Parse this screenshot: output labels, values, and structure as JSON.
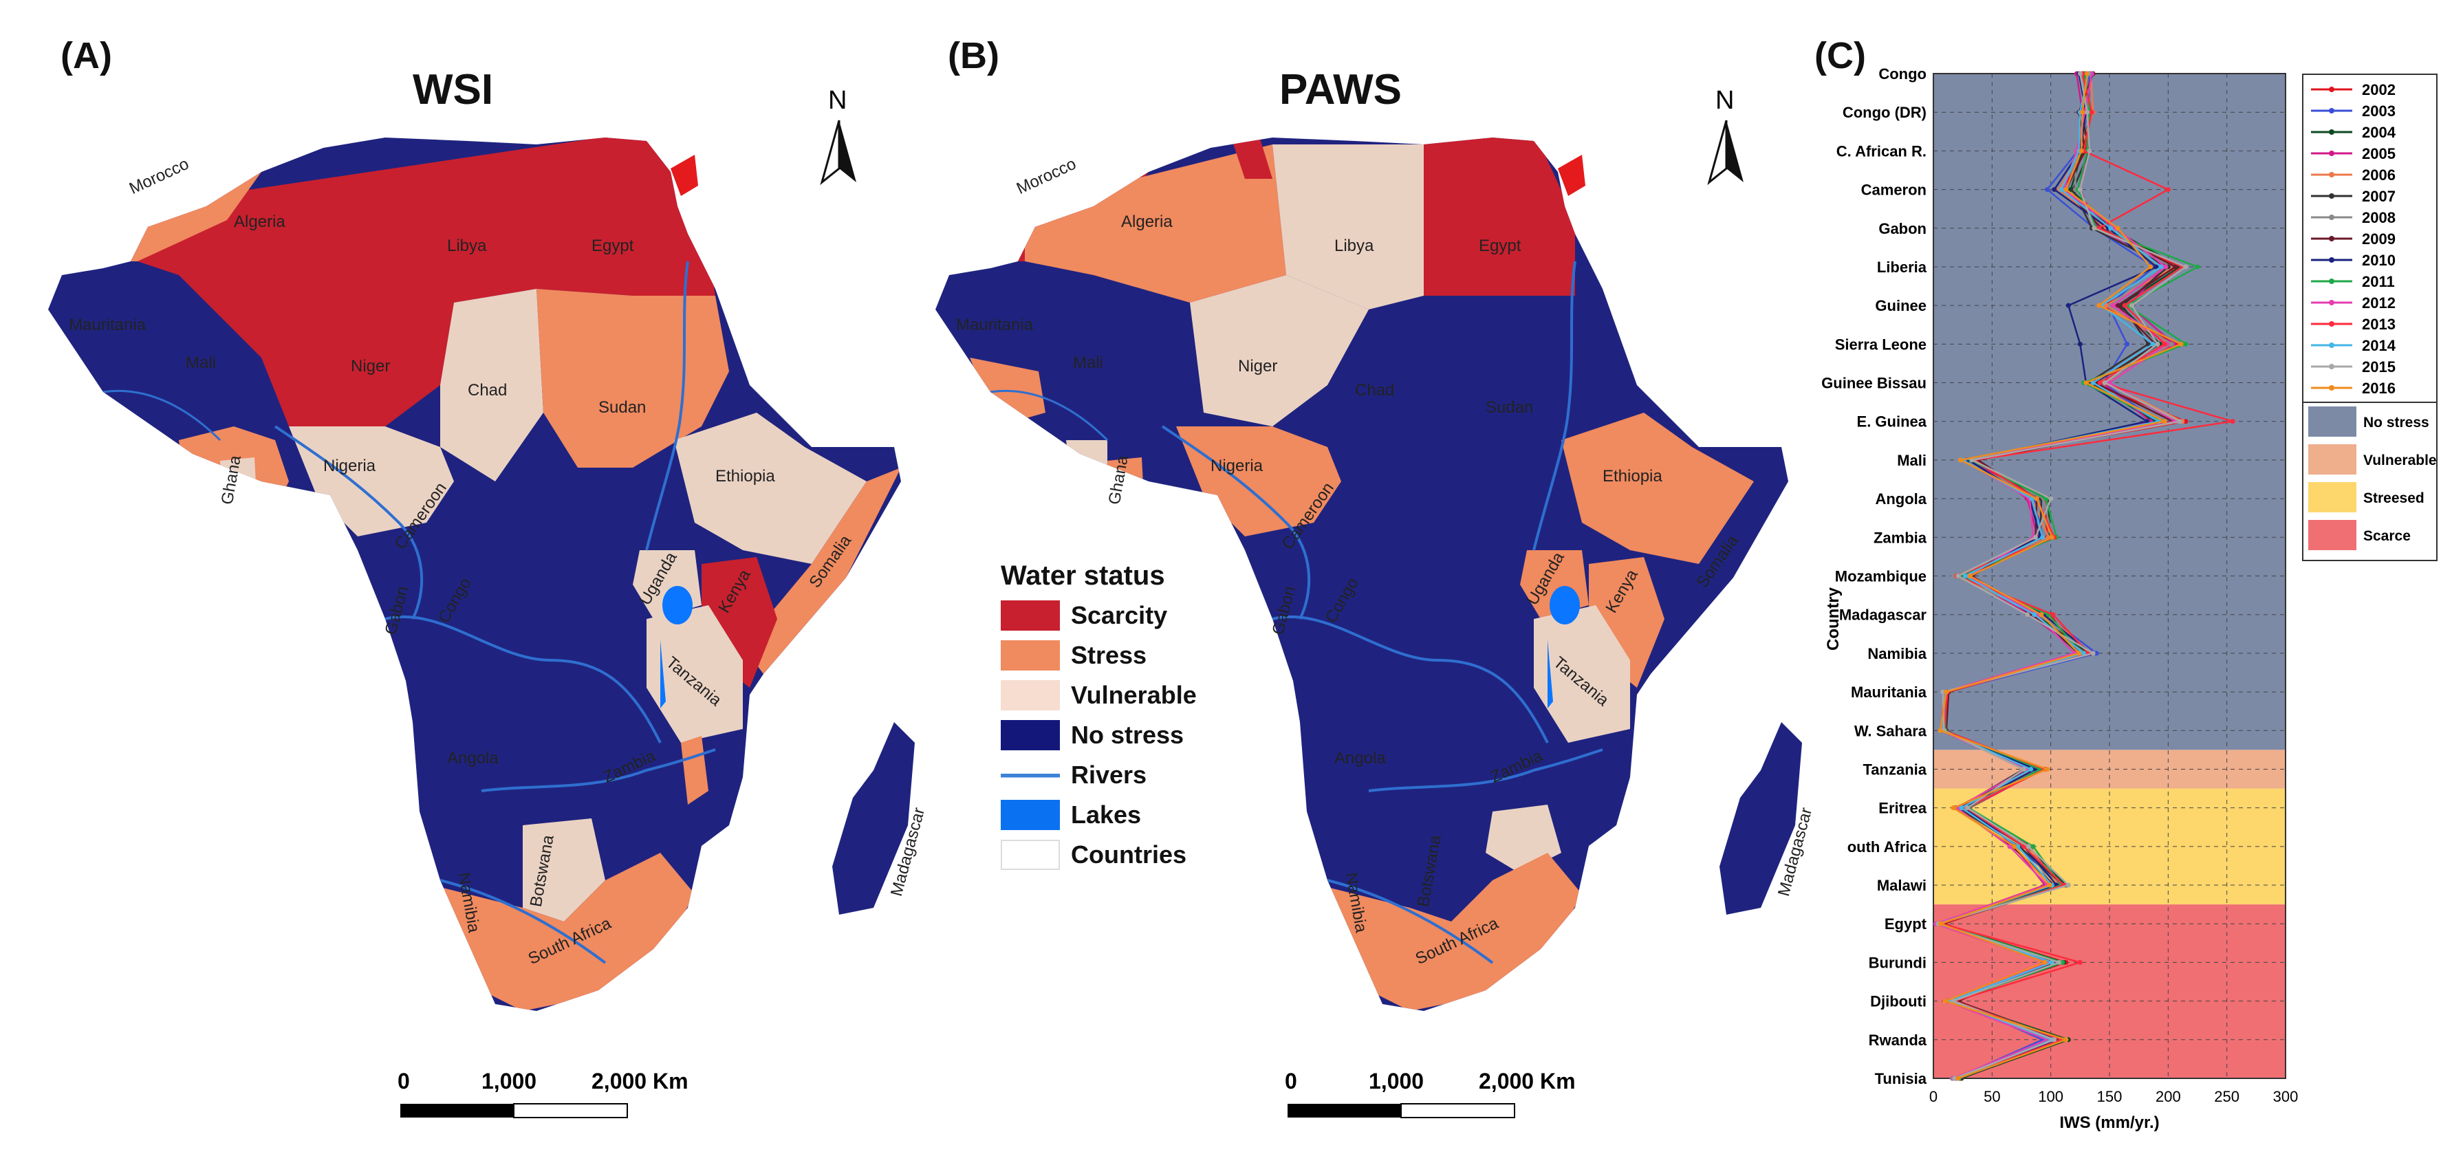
{
  "panels": {
    "a": {
      "letter": "(A)",
      "title": "WSI"
    },
    "b": {
      "letter": "(B)",
      "title": "PAWS"
    },
    "c": {
      "letter": "(C)"
    }
  },
  "north_label": "N",
  "scale": {
    "zero": "0",
    "mid": "1,000",
    "end": "2,000 Km"
  },
  "map_a_labels": {
    "morocco": "Morocco",
    "algeria": "Algeria",
    "libya": "Libya",
    "egypt": "Egypt",
    "mauritania": "Mauritania",
    "mali": "Mali",
    "niger": "Niger",
    "chad": "Chad",
    "sudan": "Sudan",
    "nigeria": "Nigeria",
    "ghana": "Ghana",
    "cameroon": "Cameroon",
    "ethiopia": "Ethiopia",
    "somalia": "Somalia",
    "gabon": "Gabon",
    "congo": "Congo",
    "uganda": "Uganda",
    "kenya": "Kenya",
    "tanzania": "Tanzania",
    "angola": "Angola",
    "zambia": "Zambia",
    "namibia": "Namibia",
    "botswana": "Botswana",
    "south_africa": "South Africa",
    "madagascar": "Madagascar"
  },
  "map_b_labels": {
    "morocco": "Morocco",
    "algeria": "Algeria",
    "libya": "Libya",
    "egypt": "Egypt",
    "mauritania": "Mauritania",
    "mali": "Mali",
    "niger": "Niger",
    "chad": "Chad",
    "sudan": "Sudan",
    "nigeria": "Nigeria",
    "ghana": "Ghana",
    "cameroon": "Cameroon",
    "ethiopia": "Ethiopia",
    "somalia": "Somalia",
    "gabon": "Gabon",
    "congo": "Congo",
    "uganda": "Uganda",
    "kenya": "Kenya",
    "tanzania": "Tanzania",
    "angola": "Angola",
    "zambia": "Zambia",
    "namibia": "Namibia",
    "botswana": "Botswana",
    "south_africa": "South Africa",
    "madagascar": "Madagascar"
  },
  "status_colors": {
    "scarcity": "#c8202f",
    "stress": "#f08a5f",
    "vulnerable": "#ead2c3",
    "no_stress": "#1f237f",
    "rivers": "#2f6fd0",
    "lakes": "#0b76ff"
  },
  "water_legend": {
    "title": "Water status",
    "items": [
      {
        "label": "Scarcity",
        "color": "#c8202f"
      },
      {
        "label": "Stress",
        "color": "#f08a5f"
      },
      {
        "label": "Vulnerable",
        "color": "#f6ddd0"
      },
      {
        "label": "No stress",
        "color": "#14177a"
      },
      {
        "label": "Rivers",
        "color": "#3b82d8"
      },
      {
        "label": "Lakes",
        "color": "#0a72f0"
      },
      {
        "label": "Countries",
        "color": "#ffffff"
      }
    ]
  },
  "chart_data": {
    "type": "line",
    "orientation": "horizontal",
    "xlabel": "IWS (mm/yr.)",
    "ylabel": "Country",
    "xlim": [
      0,
      300
    ],
    "xticks": [
      0,
      50,
      100,
      150,
      200,
      250,
      300
    ],
    "grid": true,
    "countries": [
      "Congo",
      "Congo (DR)",
      "C. African R.",
      "Cameron",
      "Gabon",
      "Liberia",
      "Guinee",
      "Sierra Leone",
      "Guinee Bissau",
      "E. Guinea",
      "Mali",
      "Angola",
      "Zambia",
      "Mozambique",
      "Madagascar",
      "Namibia",
      "Mauritania",
      "W. Sahara",
      "Tanzania",
      "Eritrea",
      "outh Africa",
      "Malawi",
      "Egypt",
      "Burundi",
      "Djibouti",
      "Rwanda",
      "Tunisia"
    ],
    "bands": [
      {
        "label": "No stress",
        "color": "#7c8aa6",
        "from": "Congo",
        "to": "W. Sahara"
      },
      {
        "label": "Vulnerable",
        "color": "#efae8c",
        "from": "Tanzania",
        "to": "Tanzania"
      },
      {
        "label": "Streesed",
        "color": "#fdd66c",
        "from": "Eritrea",
        "to": "Malawi"
      },
      {
        "label": "Scarce",
        "color": "#ef6f73",
        "from": "Egypt",
        "to": "Tunisia"
      }
    ],
    "mean_profile": [
      130,
      130,
      127,
      115,
      145,
      200,
      155,
      195,
      140,
      200,
      30,
      90,
      95,
      25,
      90,
      130,
      10,
      8,
      85,
      25,
      75,
      105,
      5,
      105,
      15,
      105,
      20
    ],
    "series": [
      {
        "name": "2002",
        "color": "#e0141e",
        "offsets": [
          0,
          -2,
          3,
          -5,
          4,
          8,
          -10,
          12,
          -6,
          15,
          -2,
          5,
          2,
          -4,
          10,
          -8,
          2,
          1,
          6,
          -3,
          8,
          -6,
          1,
          8,
          -2,
          -6,
          1
        ]
      },
      {
        "name": "2003",
        "color": "#3a4fd8",
        "offsets": [
          3,
          2,
          -4,
          -18,
          -8,
          -12,
          -6,
          -30,
          5,
          -10,
          -3,
          -4,
          -2,
          2,
          5,
          9,
          1,
          2,
          -5,
          2,
          -4,
          4,
          0,
          -10,
          3,
          -12,
          -1
        ]
      },
      {
        "name": "2004",
        "color": "#0d4a22",
        "offsets": [
          -2,
          4,
          0,
          2,
          6,
          10,
          4,
          -2,
          -4,
          -12,
          2,
          8,
          4,
          6,
          -3,
          2,
          0,
          -1,
          -4,
          4,
          5,
          8,
          2,
          6,
          1,
          10,
          3
        ]
      },
      {
        "name": "2005",
        "color": "#d11a8a",
        "offsets": [
          -8,
          -3,
          5,
          10,
          -5,
          -4,
          12,
          10,
          4,
          -15,
          4,
          -10,
          -6,
          -2,
          -8,
          -4,
          3,
          2,
          8,
          6,
          -6,
          -10,
          -2,
          -4,
          4,
          2,
          -2
        ]
      },
      {
        "name": "2006",
        "color": "#f0784c",
        "offsets": [
          4,
          6,
          -2,
          -8,
          2,
          5,
          -8,
          6,
          8,
          12,
          -4,
          -6,
          3,
          -6,
          6,
          5,
          -1,
          0,
          2,
          -2,
          6,
          2,
          0,
          3,
          -1,
          -2,
          0
        ]
      },
      {
        "name": "2007",
        "color": "#333333",
        "offsets": [
          2,
          -4,
          6,
          4,
          -10,
          0,
          6,
          -12,
          -8,
          -6,
          6,
          2,
          -4,
          4,
          -4,
          -6,
          2,
          1,
          -8,
          -4,
          -2,
          6,
          3,
          -6,
          5,
          6,
          4
        ]
      },
      {
        "name": "2008",
        "color": "#8a8a8a",
        "offsets": [
          -4,
          2,
          -6,
          6,
          8,
          -8,
          -4,
          8,
          6,
          8,
          -6,
          4,
          6,
          -8,
          2,
          6,
          -2,
          -2,
          4,
          2,
          4,
          -4,
          -1,
          4,
          -3,
          4,
          -4
        ]
      },
      {
        "name": "2009",
        "color": "#6b1a2a",
        "offsets": [
          6,
          -6,
          2,
          -2,
          -2,
          6,
          2,
          -6,
          -2,
          4,
          8,
          -2,
          -8,
          8,
          -6,
          -2,
          3,
          3,
          -2,
          -6,
          -8,
          -2,
          4,
          -2,
          6,
          -4,
          2
        ]
      },
      {
        "name": "2010",
        "color": "#1a237e",
        "offsets": [
          -6,
          0,
          -2,
          -12,
          4,
          -10,
          -40,
          -70,
          -10,
          -18,
          0,
          -8,
          -4,
          0,
          4,
          4,
          0,
          0,
          2,
          0,
          2,
          0,
          0,
          2,
          0,
          0,
          0
        ]
      },
      {
        "name": "2011",
        "color": "#1fa84a",
        "offsets": [
          -1,
          3,
          4,
          8,
          -6,
          25,
          10,
          20,
          -12,
          -5,
          2,
          6,
          10,
          -3,
          8,
          -4,
          1,
          2,
          6,
          5,
          10,
          4,
          1,
          5,
          2,
          6,
          2
        ]
      },
      {
        "name": "2012",
        "color": "#e63fb0",
        "offsets": [
          5,
          -1,
          -5,
          -4,
          10,
          -2,
          -2,
          4,
          10,
          6,
          -5,
          -8,
          -10,
          5,
          -2,
          -10,
          -1,
          -1,
          -6,
          -5,
          -10,
          -8,
          -3,
          -8,
          -4,
          -8,
          -3
        ]
      },
      {
        "name": "2013",
        "color": "#ff2a3d",
        "offsets": [
          -3,
          5,
          1,
          85,
          -4,
          12,
          8,
          2,
          2,
          55,
          5,
          -2,
          8,
          -5,
          12,
          2,
          2,
          1,
          10,
          3,
          2,
          6,
          2,
          20,
          3,
          4,
          1
        ]
      },
      {
        "name": "2014",
        "color": "#45b6e6",
        "offsets": [
          2,
          -5,
          -3,
          -6,
          6,
          -6,
          -12,
          -8,
          -4,
          -8,
          -5,
          -6,
          -2,
          2,
          -4,
          -2,
          0,
          0,
          -2,
          -1,
          -3,
          -4,
          0,
          -4,
          -1,
          -4,
          0
        ]
      },
      {
        "name": "2015",
        "color": "#a8a8a8",
        "offsets": [
          -5,
          1,
          6,
          10,
          -8,
          15,
          14,
          -4,
          6,
          10,
          3,
          10,
          -8,
          -4,
          -10,
          6,
          -2,
          1,
          -8,
          4,
          6,
          10,
          -1,
          2,
          2,
          -2,
          -2
        ]
      },
      {
        "name": "2016",
        "color": "#f08c1c",
        "offsets": [
          1,
          -3,
          -1,
          -2,
          12,
          -15,
          -14,
          16,
          -10,
          -3,
          -7,
          -2,
          6,
          6,
          2,
          -6,
          1,
          -2,
          12,
          -8,
          -6,
          -6,
          1,
          -10,
          -5,
          8,
          1
        ]
      }
    ]
  }
}
